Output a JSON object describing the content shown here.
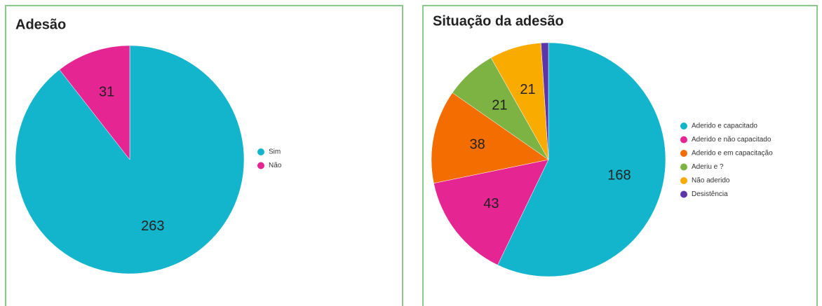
{
  "chart_data": [
    {
      "type": "pie",
      "title": "Adesão",
      "categories": [
        "Sim",
        "Não"
      ],
      "values": [
        263,
        31
      ],
      "colors": [
        "#12b5cb",
        "#e52592"
      ],
      "legend": "right"
    },
    {
      "type": "pie",
      "title": "Situação da adesão",
      "categories": [
        "Aderido e capacitado",
        "Aderido e não capacitado",
        "Aderido e em capacitação",
        "Aderiu e ?",
        "Não aderido",
        "Desistência"
      ],
      "values": [
        168,
        43,
        38,
        21,
        21,
        3
      ],
      "colors": [
        "#12b5cb",
        "#e52592",
        "#f46d00",
        "#7cb342",
        "#f9ab00",
        "#5c35a8"
      ],
      "legend": "right"
    }
  ]
}
